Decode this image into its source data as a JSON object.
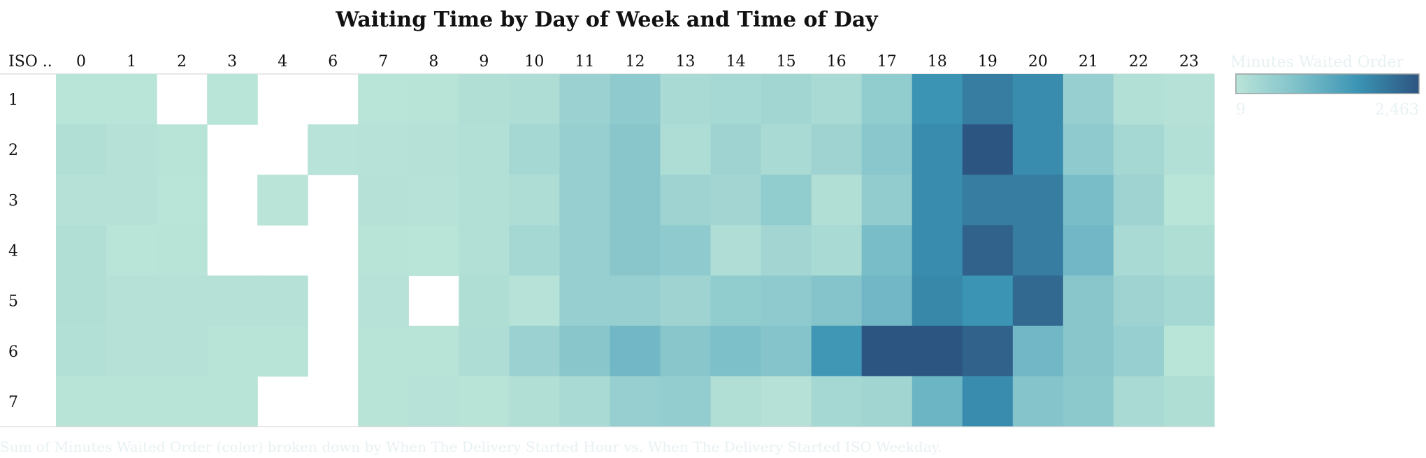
{
  "chart_data": {
    "type": "heatmap",
    "title": "Waiting Time by Day of Week and Time of Day",
    "row_header": "ISO ..",
    "x_categories": [
      "0",
      "1",
      "2",
      "3",
      "4",
      "6",
      "7",
      "8",
      "9",
      "10",
      "11",
      "12",
      "13",
      "14",
      "15",
      "16",
      "17",
      "18",
      "19",
      "20",
      "21",
      "22",
      "23"
    ],
    "y_categories": [
      "1",
      "2",
      "3",
      "4",
      "5",
      "6",
      "7"
    ],
    "values": [
      [
        20,
        20,
        null,
        20,
        null,
        null,
        20,
        40,
        130,
        180,
        440,
        600,
        250,
        270,
        340,
        250,
        580,
        1650,
        1950,
        1750,
        500,
        110,
        70
      ],
      [
        130,
        70,
        40,
        null,
        null,
        30,
        60,
        70,
        110,
        280,
        500,
        700,
        180,
        400,
        250,
        400,
        680,
        1750,
        2463,
        1750,
        600,
        280,
        110
      ],
      [
        70,
        70,
        20,
        null,
        10,
        null,
        70,
        60,
        110,
        180,
        500,
        700,
        400,
        330,
        580,
        130,
        570,
        1750,
        1950,
        1950,
        900,
        400,
        20
      ],
      [
        130,
        20,
        40,
        null,
        null,
        null,
        40,
        20,
        110,
        280,
        500,
        700,
        600,
        150,
        330,
        250,
        900,
        1750,
        2300,
        1950,
        1000,
        250,
        160
      ],
      [
        130,
        70,
        70,
        70,
        70,
        null,
        60,
        null,
        160,
        50,
        500,
        500,
        400,
        580,
        600,
        750,
        1000,
        1800,
        1650,
        2200,
        700,
        400,
        280
      ],
      [
        110,
        70,
        70,
        40,
        40,
        null,
        40,
        40,
        170,
        440,
        700,
        1000,
        700,
        850,
        750,
        1600,
        2463,
        2463,
        2300,
        1000,
        700,
        500,
        20
      ],
      [
        40,
        40,
        40,
        40,
        null,
        null,
        40,
        60,
        40,
        130,
        250,
        500,
        550,
        130,
        70,
        300,
        350,
        1050,
        1750,
        750,
        650,
        250,
        160
      ]
    ],
    "color_scale": {
      "legend_title": "Minutes Waited Order",
      "min": 9,
      "min_label": "9",
      "max": 2463,
      "max_label": "2,463",
      "colors": [
        "#bae4d8",
        "#7fc1ca",
        "#3b94b4",
        "#2d5581"
      ]
    },
    "caption": "Sum of Minutes Waited Order (color) broken down by When The Delivery Started Hour vs. When The Delivery Started ISO Weekday."
  }
}
